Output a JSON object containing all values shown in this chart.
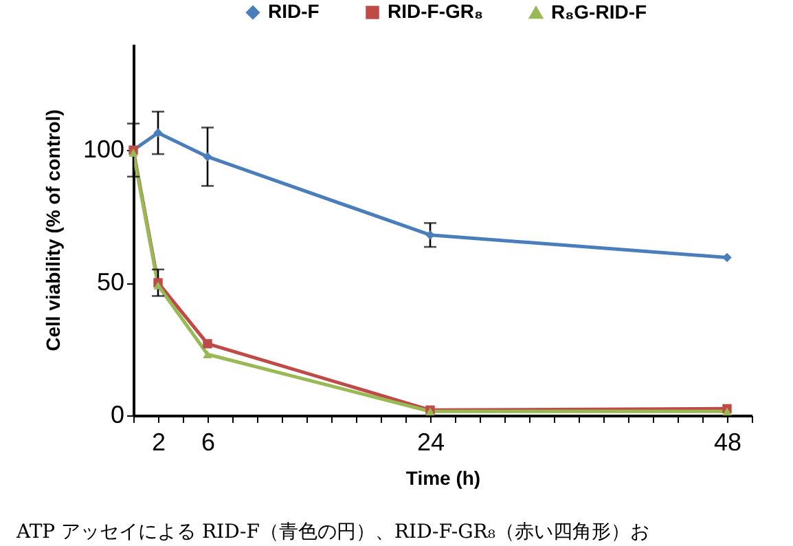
{
  "chart_data": {
    "type": "line",
    "xlabel": "Time (h)",
    "ylabel": "Cell viability (% of control)",
    "x": [
      0,
      2,
      6,
      24,
      48
    ],
    "xlim": [
      0,
      50
    ],
    "ylim": [
      0,
      140
    ],
    "xticks": [
      {
        "value": 0,
        "label": null
      },
      2,
      {
        "value": 4,
        "label": null
      },
      6,
      {
        "value": 8,
        "label": null
      },
      {
        "value": 10,
        "label": null
      },
      {
        "value": 12,
        "label": null
      },
      {
        "value": 14,
        "label": null
      },
      {
        "value": 16,
        "label": null
      },
      {
        "value": 18,
        "label": null
      },
      {
        "value": 20,
        "label": null
      },
      {
        "value": 22,
        "label": null
      },
      24,
      {
        "value": 26,
        "label": null
      },
      {
        "value": 28,
        "label": null
      },
      {
        "value": 30,
        "label": null
      },
      {
        "value": 32,
        "label": null
      },
      {
        "value": 34,
        "label": null
      },
      {
        "value": 36,
        "label": null
      },
      {
        "value": 38,
        "label": null
      },
      {
        "value": 40,
        "label": null
      },
      {
        "value": 42,
        "label": null
      },
      {
        "value": 44,
        "label": null
      },
      {
        "value": 46,
        "label": null
      },
      48,
      {
        "value": 50,
        "label": null
      }
    ],
    "yticks": [
      0,
      50,
      100
    ],
    "grid": false,
    "legend": "top right",
    "line_style": "solid",
    "series": [
      {
        "name": "RID-F",
        "color": "#4a7ebb",
        "marker": "diamond",
        "values": [
          100,
          106.5,
          97.5,
          68,
          59.5
        ],
        "errors": [
          10,
          8,
          11,
          4.5,
          null
        ]
      },
      {
        "name": "RID-F-GR₈",
        "color": "#be4b48",
        "marker": "square",
        "values": [
          100,
          50,
          27,
          2,
          2.5
        ],
        "errors": [
          null,
          5,
          null,
          null,
          null
        ]
      },
      {
        "name": "R₈G-RID-F",
        "color": "#98b954",
        "marker": "triangle",
        "values": [
          99,
          49,
          23,
          1.5,
          1.5
        ],
        "errors": [
          null,
          null,
          null,
          null,
          null
        ]
      }
    ],
    "annotations": [
      "ATP アッセイによる RID-F（青色の円）、RID-F-GR₈（赤い四角形）お"
    ]
  }
}
